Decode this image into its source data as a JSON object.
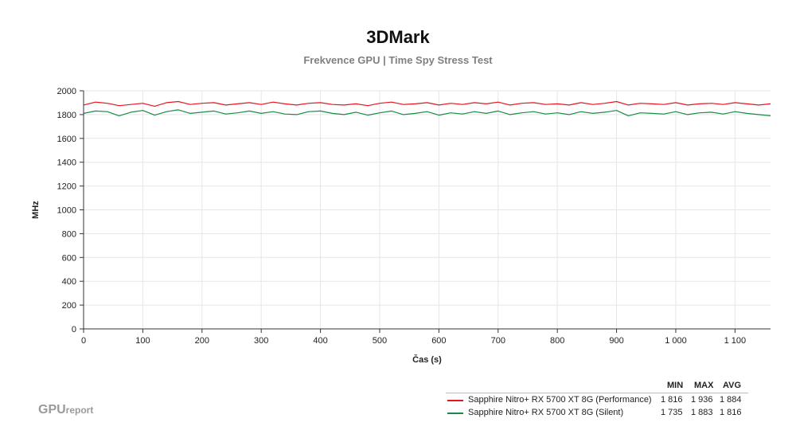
{
  "chart_data": {
    "type": "line",
    "title": "3DMark",
    "subtitle": "Frekvence GPU | Time Spy Stress Test",
    "xlabel": "Čas (s)",
    "ylabel": "MHz",
    "xlim": [
      0,
      1160
    ],
    "ylim": [
      0,
      2000
    ],
    "x_ticks": [
      0,
      100,
      200,
      300,
      400,
      500,
      600,
      700,
      800,
      900,
      1000,
      1100
    ],
    "x_tick_labels": [
      "0",
      "100",
      "200",
      "300",
      "400",
      "500",
      "600",
      "700",
      "800",
      "900",
      "1 000",
      "1 100"
    ],
    "y_ticks": [
      0,
      200,
      400,
      600,
      800,
      1000,
      1200,
      1400,
      1600,
      1800,
      2000
    ],
    "y_tick_labels": [
      "0",
      "200",
      "400",
      "600",
      "800",
      "1000",
      "1200",
      "1400",
      "1600",
      "1800",
      "2000"
    ],
    "grid": true,
    "legend_position": "bottom-right",
    "stat_headers": [
      "MIN",
      "MAX",
      "AVG"
    ],
    "series": [
      {
        "name": "Sapphire Nitro+ RX 5700 XT 8G (Performance)",
        "color": "#e8141c",
        "min": "1 816",
        "max": "1 936",
        "avg": "1 884",
        "x": [
          0,
          20,
          40,
          60,
          80,
          100,
          120,
          140,
          160,
          180,
          200,
          220,
          240,
          260,
          280,
          300,
          320,
          340,
          360,
          380,
          400,
          420,
          440,
          460,
          480,
          500,
          520,
          540,
          560,
          580,
          600,
          620,
          640,
          660,
          680,
          700,
          720,
          740,
          760,
          780,
          800,
          820,
          840,
          860,
          880,
          900,
          920,
          940,
          960,
          980,
          1000,
          1020,
          1040,
          1060,
          1080,
          1100,
          1120,
          1140,
          1160
        ],
        "values": [
          1880,
          1905,
          1895,
          1875,
          1885,
          1895,
          1870,
          1900,
          1910,
          1885,
          1895,
          1900,
          1880,
          1890,
          1900,
          1885,
          1905,
          1890,
          1880,
          1895,
          1900,
          1885,
          1880,
          1890,
          1875,
          1895,
          1905,
          1885,
          1890,
          1900,
          1880,
          1895,
          1885,
          1900,
          1890,
          1905,
          1880,
          1895,
          1900,
          1885,
          1890,
          1880,
          1900,
          1885,
          1895,
          1910,
          1880,
          1895,
          1890,
          1885,
          1900,
          1880,
          1890,
          1895,
          1885,
          1900,
          1890,
          1880,
          1890
        ]
      },
      {
        "name": "Sapphire Nitro+ RX 5700 XT 8G (Silent)",
        "color": "#1a8a4a",
        "min": "1 735",
        "max": "1 883",
        "avg": "1 816",
        "x": [
          0,
          20,
          40,
          60,
          80,
          100,
          120,
          140,
          160,
          180,
          200,
          220,
          240,
          260,
          280,
          300,
          320,
          340,
          360,
          380,
          400,
          420,
          440,
          460,
          480,
          500,
          520,
          540,
          560,
          580,
          600,
          620,
          640,
          660,
          680,
          700,
          720,
          740,
          760,
          780,
          800,
          820,
          840,
          860,
          880,
          900,
          920,
          940,
          960,
          980,
          1000,
          1020,
          1040,
          1060,
          1080,
          1100,
          1120,
          1140,
          1160
        ],
        "values": [
          1810,
          1830,
          1825,
          1790,
          1820,
          1835,
          1795,
          1825,
          1840,
          1810,
          1820,
          1830,
          1805,
          1815,
          1830,
          1810,
          1825,
          1805,
          1800,
          1825,
          1830,
          1810,
          1800,
          1820,
          1795,
          1815,
          1830,
          1800,
          1810,
          1825,
          1795,
          1815,
          1805,
          1825,
          1810,
          1830,
          1800,
          1815,
          1825,
          1805,
          1815,
          1800,
          1825,
          1810,
          1820,
          1835,
          1790,
          1815,
          1810,
          1805,
          1825,
          1800,
          1815,
          1820,
          1805,
          1825,
          1810,
          1800,
          1790
        ]
      }
    ]
  },
  "branding": {
    "logo_main": "GPU",
    "logo_sub": "report"
  }
}
